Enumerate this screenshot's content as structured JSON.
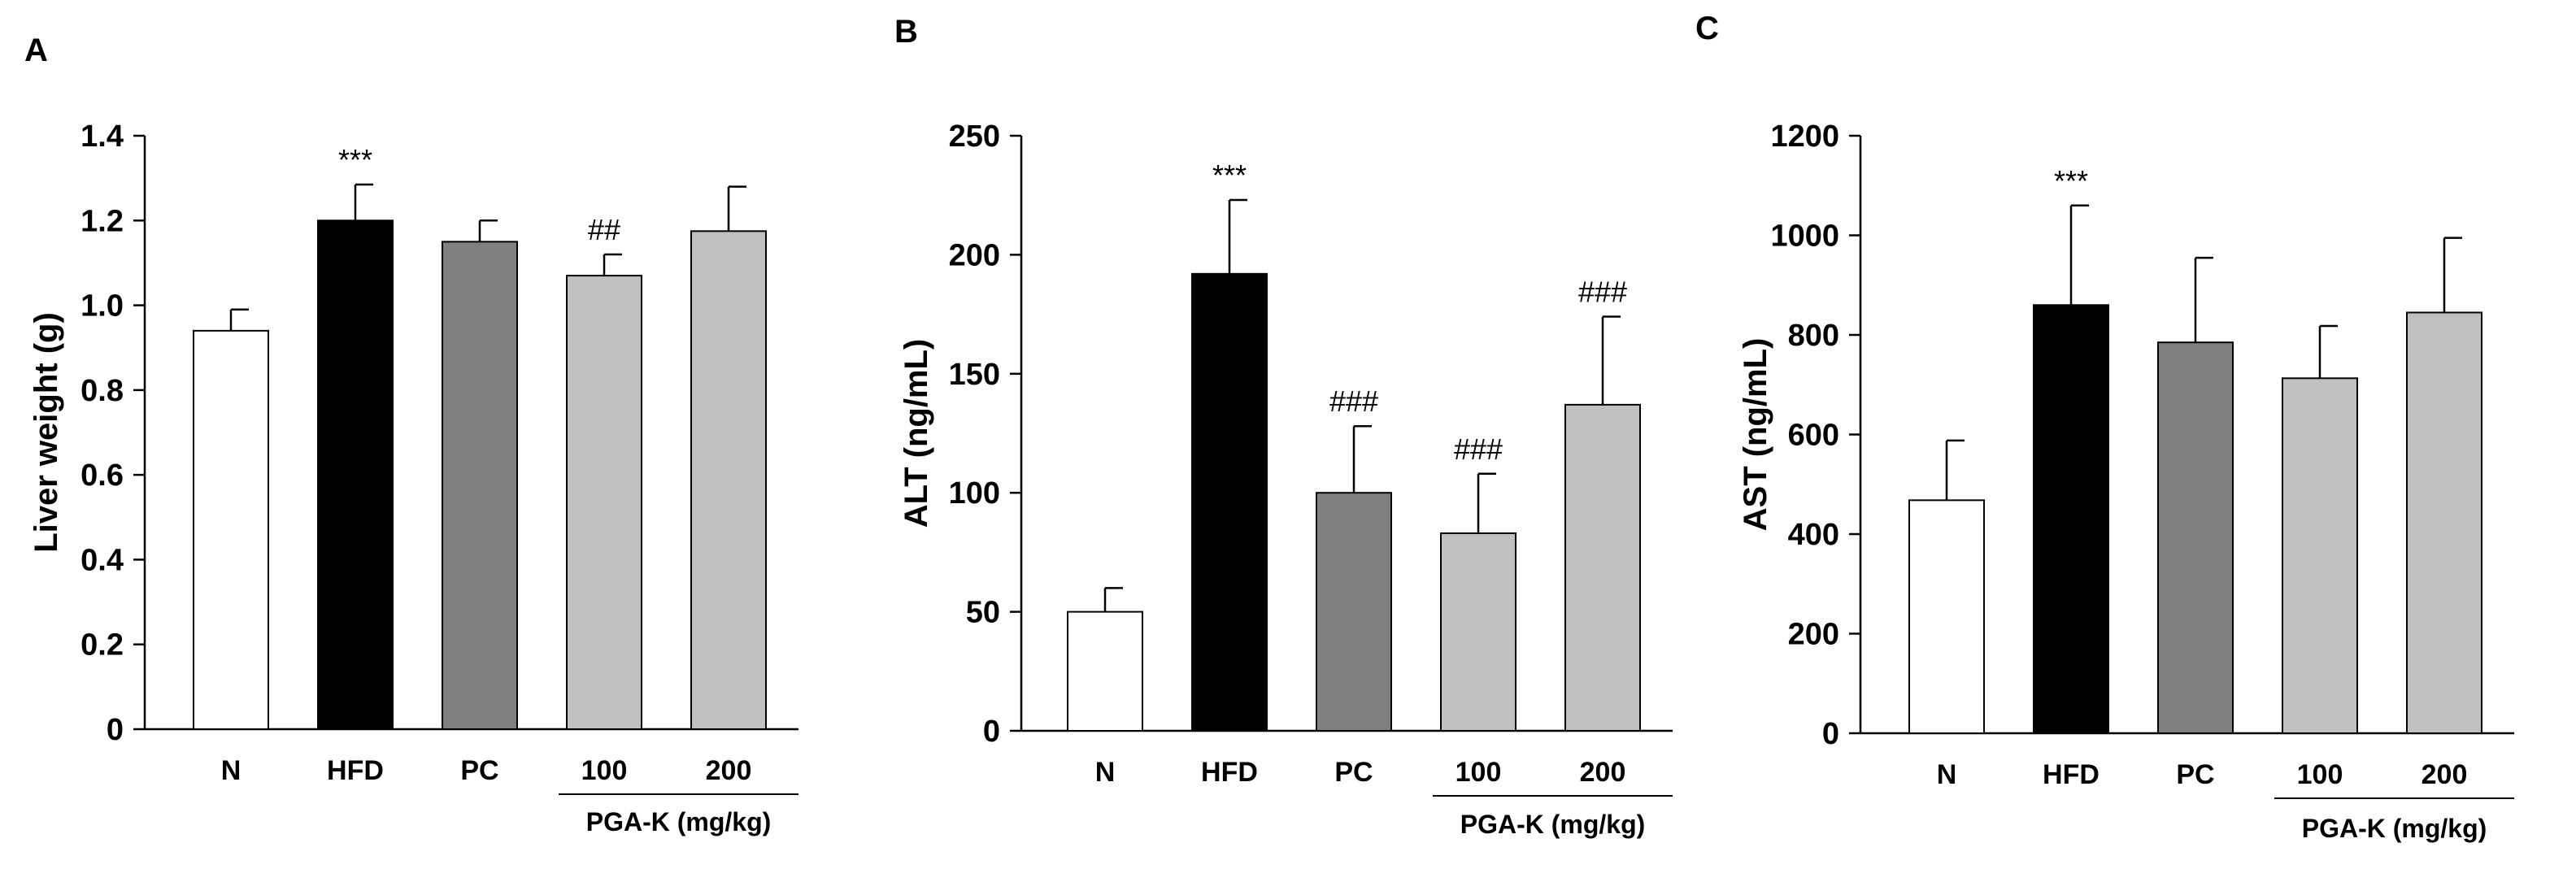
{
  "figure": {
    "panels": [
      {
        "letter": "A",
        "chart_id": "liver-weight-chart"
      },
      {
        "letter": "B",
        "chart_id": "alt-chart"
      },
      {
        "letter": "C",
        "chart_id": "ast-chart"
      }
    ],
    "group_label": "PGA-K (mg/kg)"
  },
  "chart_data": [
    {
      "type": "bar",
      "title": "",
      "xlabel": "",
      "ylabel": "Liver weight (g)",
      "ylim": [
        0,
        1.4
      ],
      "yticks": [
        0,
        0.2,
        0.4,
        0.6,
        0.8,
        1.0,
        1.2,
        1.4
      ],
      "ytick_labels": [
        "0",
        "0.2",
        "0.4",
        "0.6",
        "0.8",
        "1.0",
        "1.2",
        "1.4"
      ],
      "categories": [
        "N",
        "HFD",
        "PC",
        "100",
        "200"
      ],
      "values": [
        0.94,
        1.2,
        1.15,
        1.07,
        1.175
      ],
      "errors": [
        0.05,
        0.085,
        0.05,
        0.05,
        0.105
      ],
      "bar_colors": [
        "#ffffff",
        "#000000",
        "#7f7f7f",
        "#c0c0c0",
        "#c0c0c0"
      ],
      "annotations": [
        "",
        "***",
        "",
        "##",
        ""
      ],
      "grouped_categories": [
        "100",
        "200"
      ]
    },
    {
      "type": "bar",
      "title": "",
      "xlabel": "",
      "ylabel": "ALT (ng/mL)",
      "ylim": [
        0,
        250
      ],
      "yticks": [
        0,
        50,
        100,
        150,
        200,
        250
      ],
      "ytick_labels": [
        "0",
        "50",
        "100",
        "150",
        "200",
        "250"
      ],
      "categories": [
        "N",
        "HFD",
        "PC",
        "100",
        "200"
      ],
      "values": [
        50,
        192,
        100,
        83,
        137
      ],
      "errors": [
        10,
        31,
        28,
        25,
        37
      ],
      "bar_colors": [
        "#ffffff",
        "#000000",
        "#7f7f7f",
        "#c0c0c0",
        "#c0c0c0"
      ],
      "annotations": [
        "",
        "***",
        "###",
        "###",
        "###"
      ],
      "grouped_categories": [
        "100",
        "200"
      ]
    },
    {
      "type": "bar",
      "title": "",
      "xlabel": "",
      "ylabel": "AST (ng/mL)",
      "ylim": [
        0,
        1200
      ],
      "yticks": [
        0,
        200,
        400,
        600,
        800,
        1000,
        1200
      ],
      "ytick_labels": [
        "0",
        "200",
        "400",
        "600",
        "800",
        "1000",
        "1200"
      ],
      "categories": [
        "N",
        "HFD",
        "PC",
        "100",
        "200"
      ],
      "values": [
        468,
        860,
        785,
        713,
        845
      ],
      "errors": [
        120,
        200,
        170,
        105,
        150
      ],
      "bar_colors": [
        "#ffffff",
        "#000000",
        "#7f7f7f",
        "#c0c0c0",
        "#c0c0c0"
      ],
      "annotations": [
        "",
        "***",
        "",
        "",
        ""
      ],
      "grouped_categories": [
        "100",
        "200"
      ]
    }
  ]
}
